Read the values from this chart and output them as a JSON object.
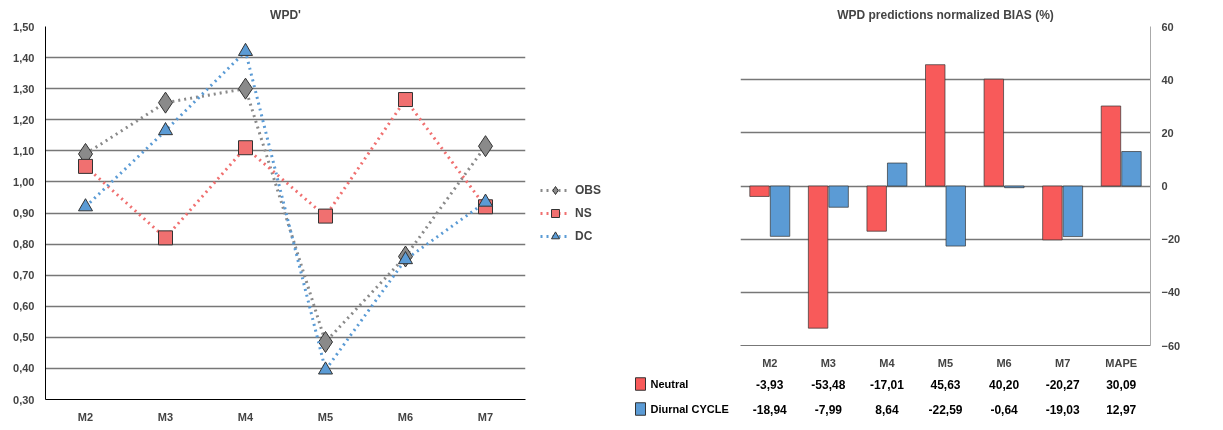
{
  "chart_data": [
    {
      "type": "line",
      "title": "WPD'",
      "categories": [
        "M2",
        "M3",
        "M4",
        "M5",
        "M6",
        "M7"
      ],
      "series": [
        {
          "name": "OBS",
          "color": "#8a8a8a",
          "marker": "diamond",
          "values": [
            1.09,
            1.255,
            1.3,
            0.485,
            0.76,
            1.115
          ]
        },
        {
          "name": "NS",
          "color": "#f07070",
          "marker": "square",
          "values": [
            1.05,
            0.82,
            1.11,
            0.89,
            1.265,
            0.92
          ]
        },
        {
          "name": "DC",
          "color": "#5b9bd5",
          "marker": "triangle",
          "values": [
            0.92,
            1.165,
            1.42,
            0.395,
            0.75,
            0.935
          ]
        }
      ],
      "ylim": [
        0.3,
        1.5
      ],
      "yticks": [
        {
          "value": 0.3,
          "label": "0,30"
        },
        {
          "value": 0.4,
          "label": "0,40"
        },
        {
          "value": 0.5,
          "label": "0,50"
        },
        {
          "value": 0.6,
          "label": "0,60"
        },
        {
          "value": 0.7,
          "label": "0,70"
        },
        {
          "value": 0.8,
          "label": "0,80"
        },
        {
          "value": 0.9,
          "label": "0,90"
        },
        {
          "value": 1.0,
          "label": "1,00"
        },
        {
          "value": 1.1,
          "label": "1,10"
        },
        {
          "value": 1.2,
          "label": "1,20"
        },
        {
          "value": 1.3,
          "label": "1,30"
        },
        {
          "value": 1.4,
          "label": "1,40"
        },
        {
          "value": 1.5,
          "label": "1,50"
        }
      ],
      "grid": "y",
      "legend": "right",
      "line_style": "dotted"
    },
    {
      "type": "bar",
      "title": "WPD predictions normalized BIAS (%)",
      "categories": [
        "M2",
        "M3",
        "M4",
        "M5",
        "M6",
        "M7",
        "MAPE"
      ],
      "series": [
        {
          "name": "Neutral",
          "color": "#f85a5a",
          "values": [
            -3.93,
            -53.48,
            -17.01,
            45.63,
            40.2,
            -20.27,
            30.09
          ],
          "value_labels": [
            "-3,93",
            "-53,48",
            "-17,01",
            "45,63",
            "40,20",
            "-20,27",
            "30,09"
          ]
        },
        {
          "name": "Diurnal CYCLE",
          "color": "#5b9bd5",
          "values": [
            -18.94,
            -7.99,
            8.64,
            -22.59,
            -0.64,
            -19.03,
            12.97
          ],
          "value_labels": [
            "-18,94",
            "-7,99",
            "8,64",
            "-22,59",
            "-0,64",
            "-19,03",
            "12,97"
          ]
        }
      ],
      "ylim": [
        -60,
        60
      ],
      "yticks": [
        -60,
        -40,
        -20,
        0,
        20,
        40,
        60
      ],
      "grid": "y",
      "legend": "bottom"
    }
  ]
}
